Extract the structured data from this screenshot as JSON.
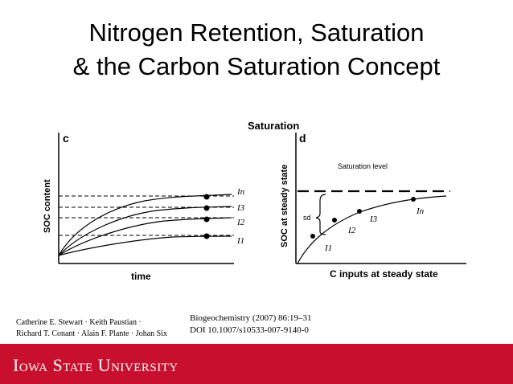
{
  "slide": {
    "title_line1": "Nitrogen Retention, Saturation",
    "title_line2": "& the Carbon Saturation Concept"
  },
  "figure": {
    "header_label": "Saturation",
    "panel_c": {
      "letter": "c",
      "ylabel": "SOC content",
      "xlabel": "time",
      "curve_labels": [
        "In",
        "I3",
        "I2",
        "I1"
      ]
    },
    "panel_d": {
      "letter": "d",
      "ylabel": "SOC at steady state",
      "xlabel": "C inputs at steady state",
      "saturation_label": "Saturation level",
      "sd_label": "sd",
      "point_labels": [
        "I1",
        "I2",
        "I3",
        "In"
      ]
    }
  },
  "citation": {
    "authors_line1": "Catherine E. Stewart · Keith Paustian ·",
    "authors_line2": "Richard T. Conant · Alain F. Plante · Johan Six",
    "journal": "Biogeochemistry (2007) 86:19–31",
    "doi": "DOI 10.1007/s10533-007-9140-0"
  },
  "footer": {
    "brand": "Iowa State University",
    "background_color": "#c8102e"
  }
}
